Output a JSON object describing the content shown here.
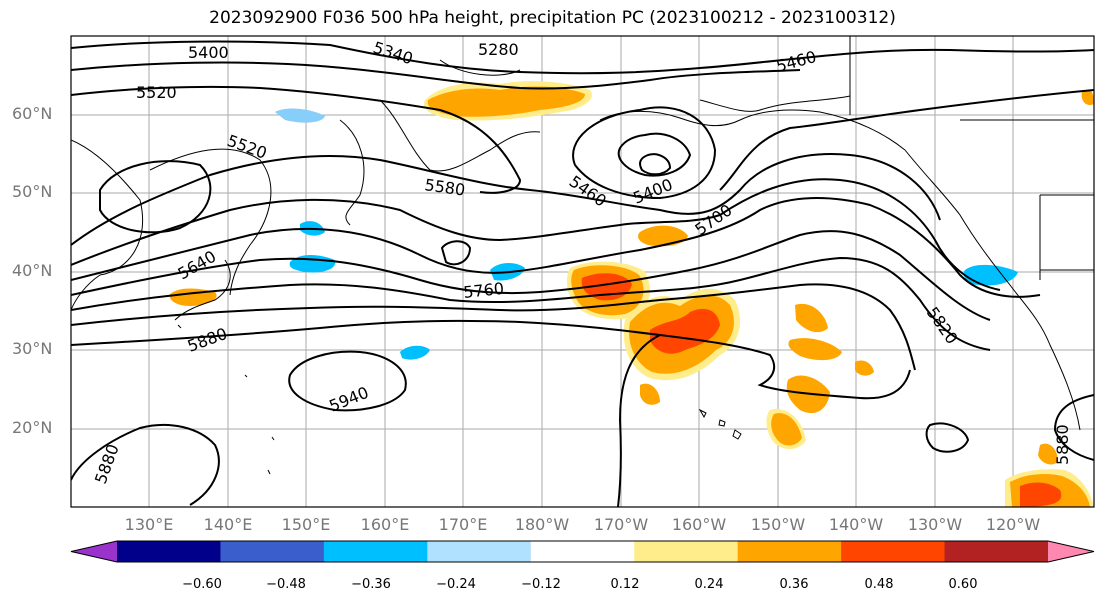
{
  "title": "2023092900 F036 500 hPa height, precipitation PC (2023100212 - 2023100312)",
  "lat_labels": [
    "60°N",
    "50°N",
    "40°N",
    "30°N",
    "20°N"
  ],
  "lon_labels": [
    "130°E",
    "140°E",
    "150°E",
    "160°E",
    "170°E",
    "180°W",
    "170°W",
    "160°W",
    "150°W",
    "140°W",
    "130°W",
    "120°W"
  ],
  "contour_labels": [
    "5400",
    "5340",
    "5280",
    "5460",
    "5520",
    "5520",
    "5580",
    "5460",
    "5400",
    "5700",
    "5640",
    "5760",
    "5880",
    "5820",
    "5940",
    "5880",
    "5880"
  ],
  "colorbar": {
    "tick_labels": [
      "−0.60",
      "−0.48",
      "−0.36",
      "−0.24",
      "−0.12",
      "0.12",
      "0.24",
      "0.36",
      "0.48",
      "0.60"
    ],
    "colors": [
      "#9a33cc",
      "#00008b",
      "#3a5fcd",
      "#00bfff",
      "#b0e2ff",
      "#ffffff",
      "#ffec8b",
      "#ffa500",
      "#ff4500",
      "#b22222",
      "#ff88b0"
    ]
  }
}
